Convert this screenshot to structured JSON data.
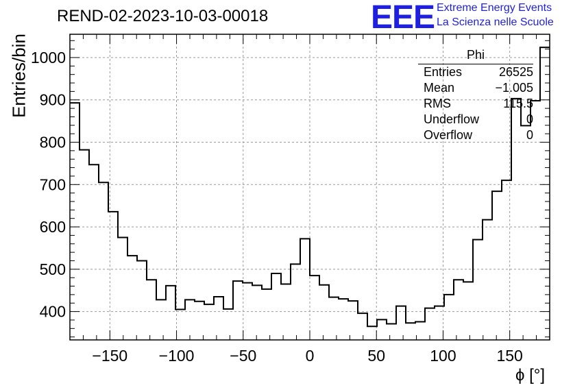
{
  "header": {
    "title": "REND-02-2023-10-03-00018",
    "logo_text": "EEE",
    "logo_line1": "Extreme Energy Events",
    "logo_line2": "La Scienza nelle Scuole",
    "logo_color": "#1f1fe0"
  },
  "stats_box": {
    "title": "Phi",
    "rows": [
      {
        "label": "Entries",
        "value": "26525"
      },
      {
        "label": "Mean",
        "value": "−1.005"
      },
      {
        "label": "RMS",
        "value": "115.5"
      },
      {
        "label": "Underflow",
        "value": "0"
      },
      {
        "label": "Overflow",
        "value": "0"
      }
    ]
  },
  "chart_data": {
    "type": "bar",
    "histogram": true,
    "title": "REND-02-2023-10-03-00018",
    "xlabel": "ϕ [°]",
    "ylabel": "Entries/bin",
    "xlim": [
      -180,
      180
    ],
    "ylim": [
      333,
      1055
    ],
    "bin_width": 7.2,
    "bin_low_edges": [
      -180,
      -172.8,
      -165.6,
      -158.4,
      -151.2,
      -144,
      -136.8,
      -129.6,
      -122.4,
      -115.2,
      -108,
      -100.8,
      -93.6,
      -86.4,
      -79.2,
      -72,
      -64.8,
      -57.6,
      -50.4,
      -43.2,
      -36,
      -28.8,
      -21.6,
      -14.4,
      -7.2,
      0,
      7.2,
      14.4,
      21.6,
      28.8,
      36,
      43.2,
      50.4,
      57.6,
      64.8,
      72,
      79.2,
      86.4,
      93.6,
      100.8,
      108,
      115.2,
      122.4,
      129.6,
      136.8,
      144,
      151.2,
      158.4,
      165.6,
      172.8
    ],
    "values": [
      893,
      782,
      747,
      705,
      636,
      575,
      532,
      520,
      475,
      428,
      461,
      405,
      428,
      424,
      417,
      435,
      406,
      472,
      468,
      462,
      453,
      490,
      465,
      512,
      572,
      485,
      463,
      434,
      430,
      425,
      396,
      365,
      381,
      371,
      413,
      373,
      376,
      408,
      413,
      440,
      475,
      470,
      570,
      617,
      684,
      710,
      903,
      839,
      898,
      1024
    ],
    "x_ticks": [
      -150,
      -100,
      -50,
      0,
      50,
      100,
      150
    ],
    "x_tick_labels": [
      "−150",
      "−100",
      "−50",
      "0",
      "50",
      "100",
      "150"
    ],
    "y_ticks": [
      400,
      500,
      600,
      700,
      800,
      900,
      1000
    ],
    "y_tick_labels": [
      "400",
      "500",
      "600",
      "700",
      "800",
      "900",
      "1000"
    ],
    "grid": true,
    "stats_placement": "top-right"
  }
}
